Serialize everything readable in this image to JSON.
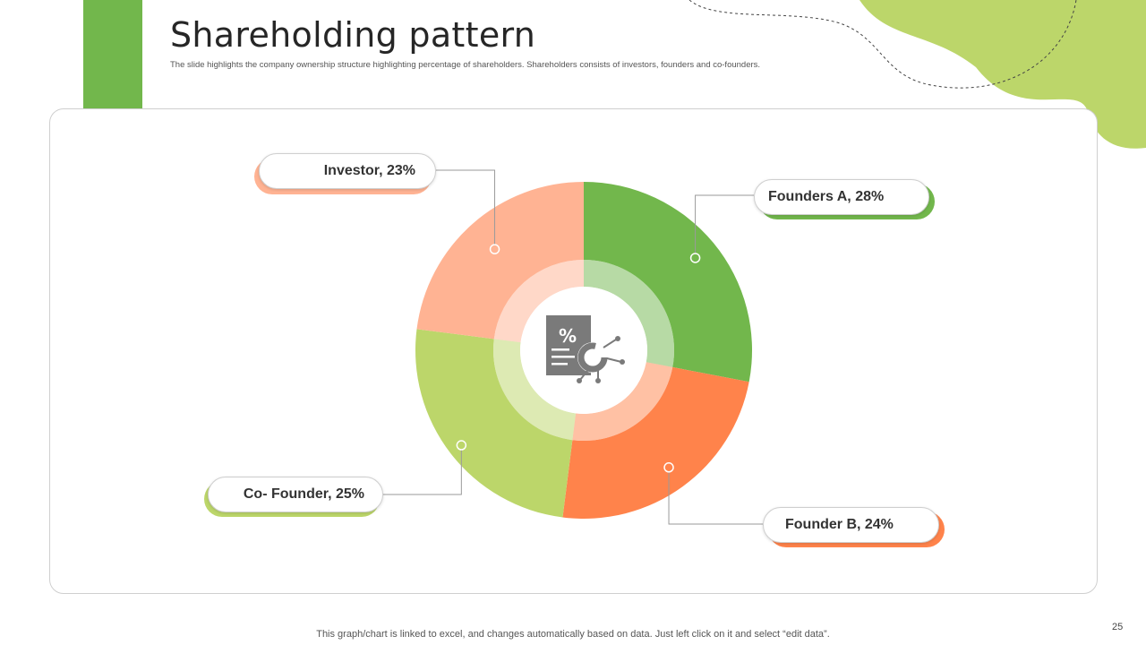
{
  "header": {
    "title": "Shareholding pattern",
    "subtitle": "The slide highlights the company ownership structure highlighting percentage of shareholders. Shareholders consists of investors, founders and co-founders."
  },
  "colors": {
    "founders_a": "#72b74c",
    "founder_b": "#ff834b",
    "co_founder": "#bcd66a",
    "investor": "#ffb393",
    "accent_green": "#72b74c",
    "icon_gray": "#7a7a7a"
  },
  "chart_data": {
    "type": "pie",
    "variant": "donut",
    "title": "",
    "series": [
      {
        "name": "Founders A",
        "value": 28,
        "label": "Founders A, 28%",
        "color": "#72b74c"
      },
      {
        "name": "Founder B",
        "value": 24,
        "label": "Founder B, 24%",
        "color": "#ff834b"
      },
      {
        "name": "Co- Founder",
        "value": 25,
        "label": "Co- Founder, 25%",
        "color": "#bcd66a"
      },
      {
        "name": "Investor",
        "value": 23,
        "label": "Investor, 23%",
        "color": "#ffb393"
      }
    ],
    "center_icon": "percent-document-chart-icon"
  },
  "footer": {
    "note": "This graph/chart is linked to excel, and changes automatically based on data. Just left click on it and select “edit data”.",
    "page_number": "25"
  }
}
